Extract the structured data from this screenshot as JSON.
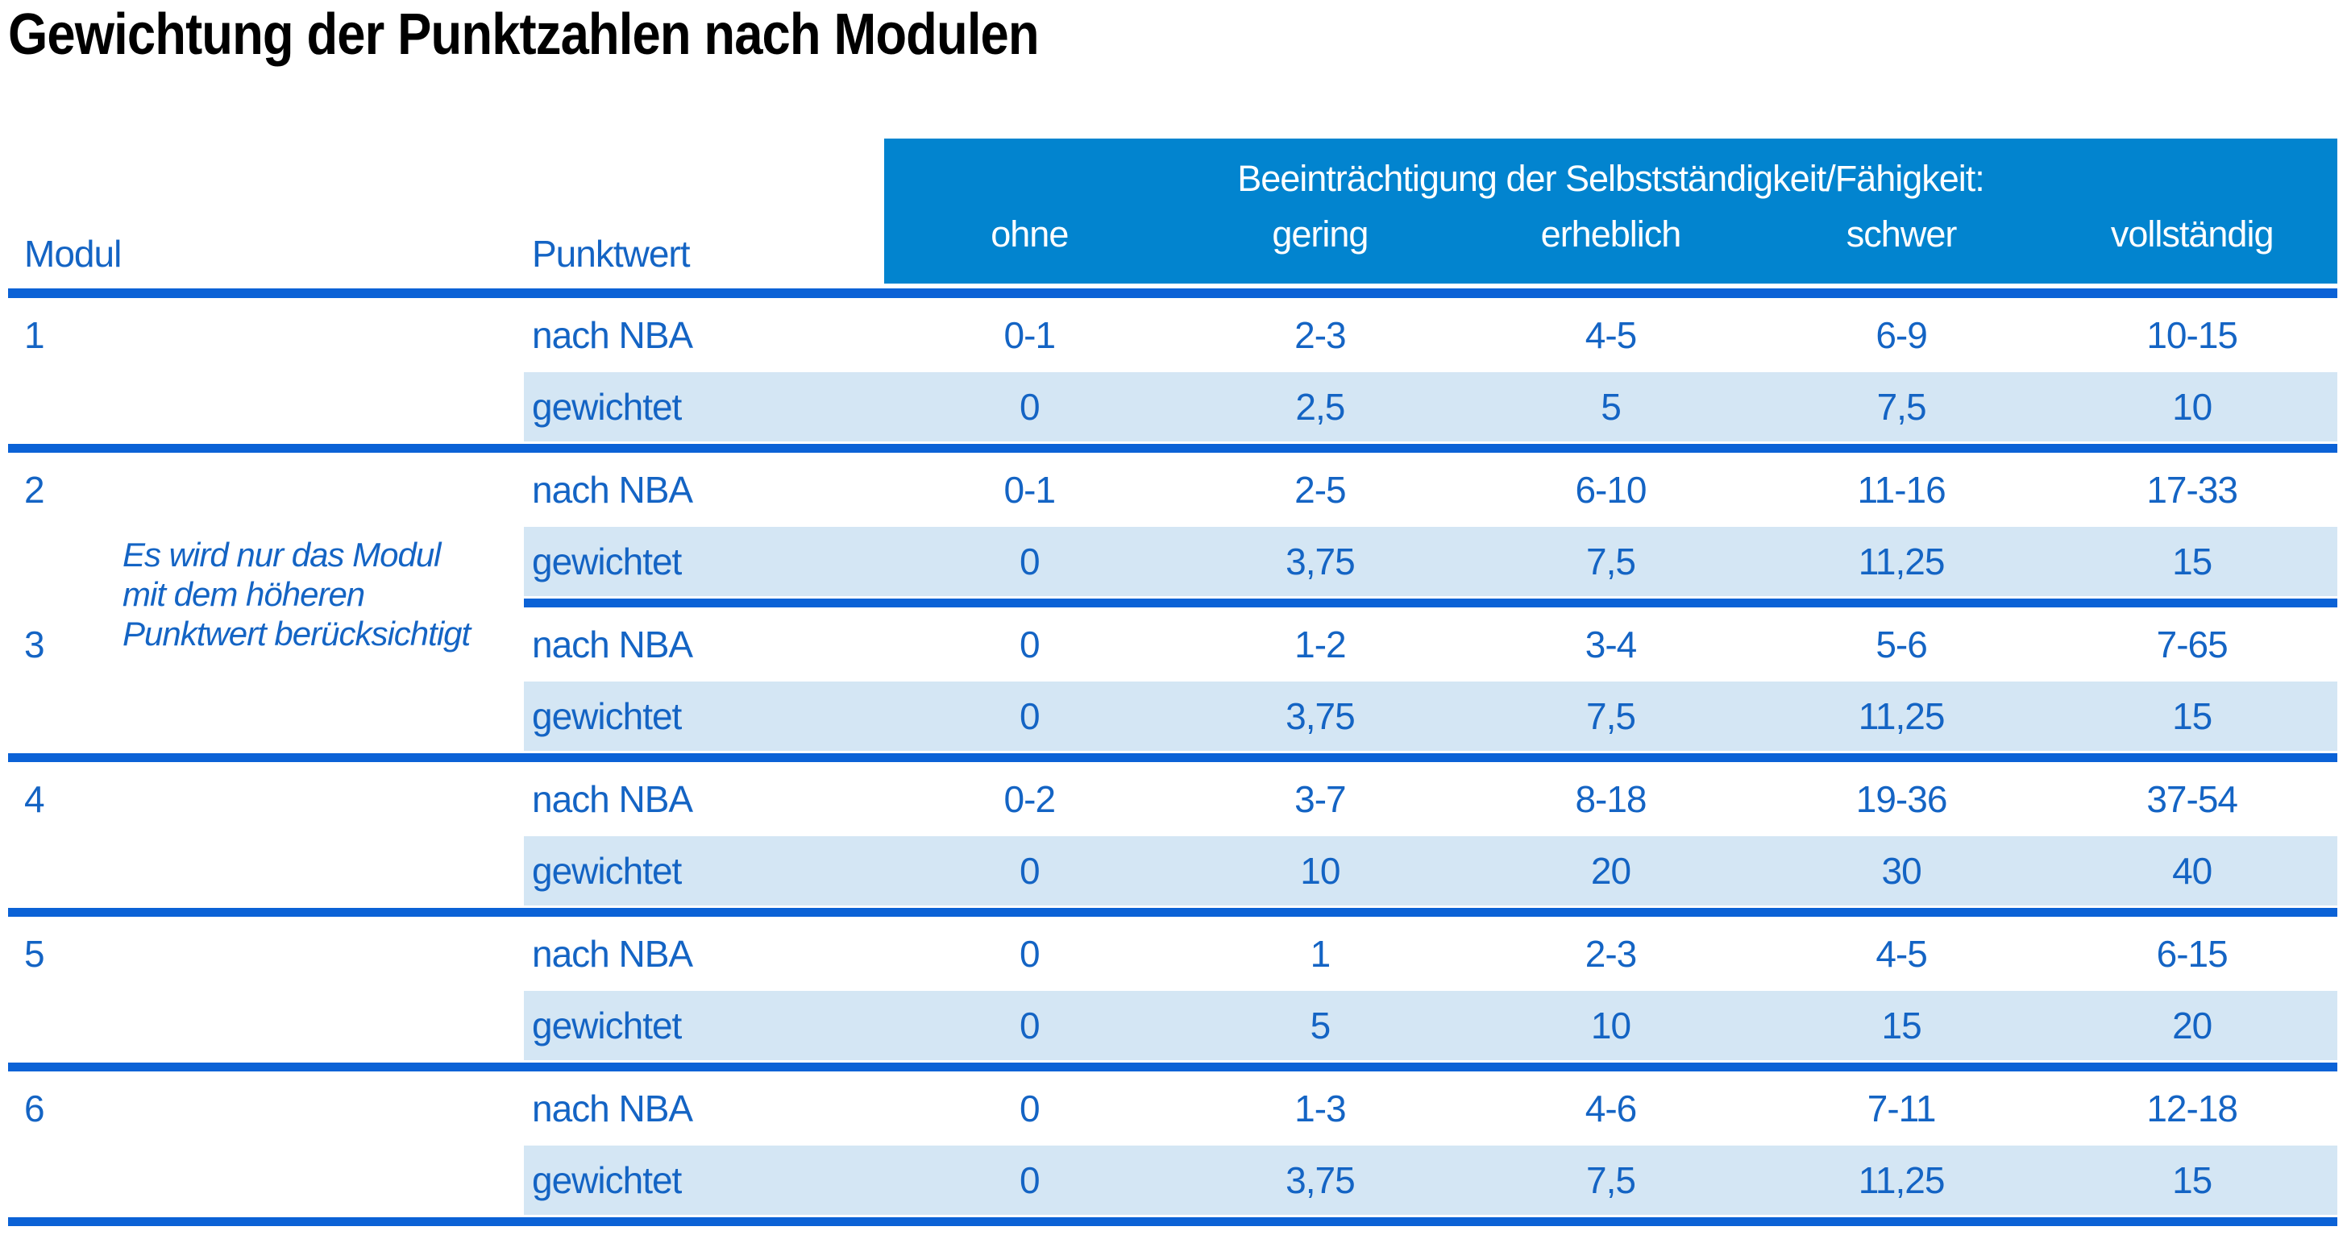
{
  "title": "Gewichtung der Punktzahlen nach Modulen",
  "table": {
    "col_headers": {
      "modul": "Modul",
      "punktwert": "Punktwert"
    },
    "banner": "Beeinträchtigung der Selbstständigkeit/Fähigkeit:",
    "severity_levels": [
      "ohne",
      "gering",
      "erheblich",
      "schwer",
      "vollständig"
    ],
    "row_labels": {
      "nba": "nach NBA",
      "weighted": "gewichtet"
    },
    "note_lines": [
      "Es wird nur das Modul",
      "mit dem höheren",
      "Punktwert berücksichtigt"
    ],
    "modules": [
      {
        "id": "1",
        "nba": [
          "0-1",
          "2-3",
          "4-5",
          "6-9",
          "10-15"
        ],
        "weighted": [
          "0",
          "2,5",
          "5",
          "7,5",
          "10"
        ]
      },
      {
        "id": "2",
        "nba": [
          "0-1",
          "2-5",
          "6-10",
          "11-16",
          "17-33"
        ],
        "weighted": [
          "0",
          "3,75",
          "7,5",
          "11,25",
          "15"
        ]
      },
      {
        "id": "3",
        "nba": [
          "0",
          "1-2",
          "3-4",
          "5-6",
          "7-65"
        ],
        "weighted": [
          "0",
          "3,75",
          "7,5",
          "11,25",
          "15"
        ]
      },
      {
        "id": "4",
        "nba": [
          "0-2",
          "3-7",
          "8-18",
          "19-36",
          "37-54"
        ],
        "weighted": [
          "0",
          "10",
          "20",
          "30",
          "40"
        ]
      },
      {
        "id": "5",
        "nba": [
          "0",
          "1",
          "2-3",
          "4-5",
          "6-15"
        ],
        "weighted": [
          "0",
          "5",
          "10",
          "15",
          "20"
        ]
      },
      {
        "id": "6",
        "nba": [
          "0",
          "1-3",
          "4-6",
          "7-11",
          "12-18"
        ],
        "weighted": [
          "0",
          "3,75",
          "7,5",
          "11,25",
          "15"
        ]
      }
    ]
  },
  "colors": {
    "band_blue": "#0284cf",
    "rule_blue": "#0b62d6",
    "row_light_blue": "#d4e6f4",
    "text_blue": "#1464c4"
  }
}
